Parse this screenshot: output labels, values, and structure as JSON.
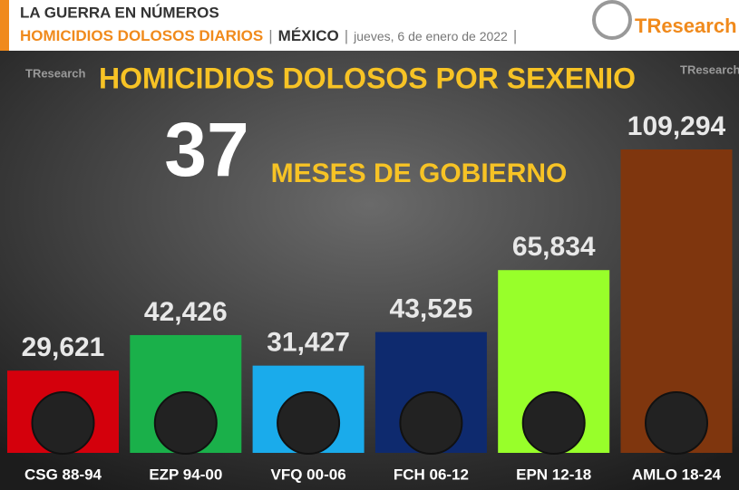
{
  "header": {
    "title": "LA GUERRA EN NÚMEROS",
    "subtitle": "HOMICIDIOS DOLOSOS DIARIOS",
    "separator": "|",
    "country": "MÉXICO",
    "date": "jueves, 6 de enero de 2022"
  },
  "logo": "TResearch",
  "chart_data": {
    "type": "bar",
    "title": "HOMICIDIOS DOLOSOS POR SEXENIO",
    "months": 37,
    "months_label": "MESES DE GOBIERNO",
    "categories": [
      "CSG 88-94",
      "EZP 94-00",
      "VFQ 00-06",
      "FCH 06-12",
      "EPN 12-18",
      "AMLO 18-24"
    ],
    "values": [
      29621,
      42426,
      31427,
      43525,
      65834,
      109294
    ],
    "value_labels": [
      "29,621",
      "42,426",
      "31,427",
      "43,525",
      "65,834",
      "109,294"
    ],
    "colors": [
      "#d4000c",
      "#1ab04a",
      "#1aabeb",
      "#0e2a6e",
      "#98ff2a",
      "#7f360e"
    ]
  }
}
